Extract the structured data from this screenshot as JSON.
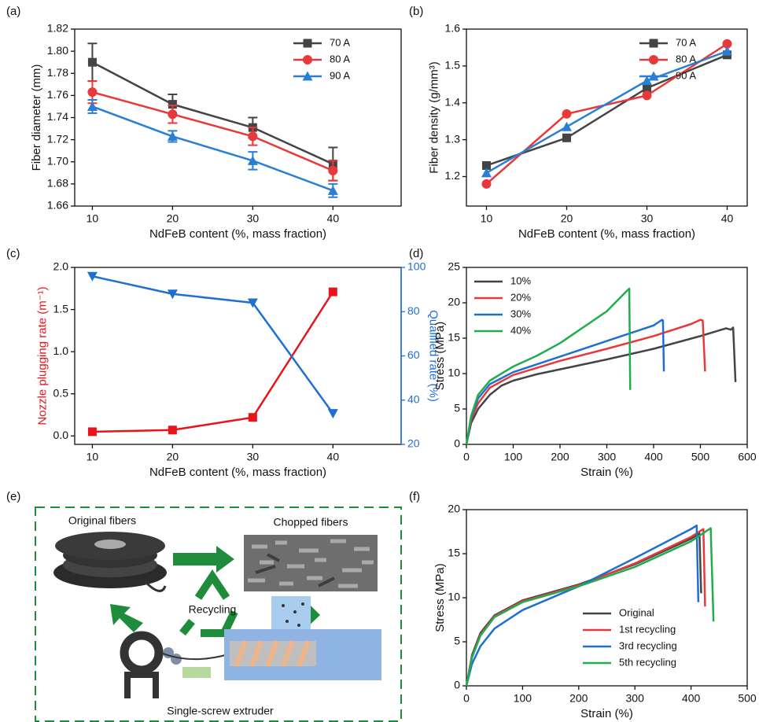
{
  "chart_data": [
    {
      "type": "line",
      "label": "(a)",
      "xlabel": "NdFeB content (%, mass fraction)",
      "ylabel": "Fiber diameter (mm)",
      "xlim": [
        7.8,
        48.5
      ],
      "xticks": [
        10,
        20,
        30,
        40
      ],
      "ylim": [
        1.66,
        1.82
      ],
      "yticks": [
        1.66,
        1.68,
        {
          "value": 1.7,
          "label": "1.70"
        },
        1.72,
        1.74,
        1.76,
        1.78,
        {
          "value": 1.8,
          "label": "1.80"
        },
        1.82
      ],
      "legend": "upper right",
      "x": [
        10,
        20,
        30,
        40
      ],
      "series": [
        {
          "name": "70 A",
          "color": "#444444",
          "marker": "square",
          "values": [
            1.79,
            1.752,
            1.731,
            1.698
          ],
          "errors": [
            0.017,
            0.009,
            0.009,
            0.015
          ]
        },
        {
          "name": "80 A",
          "color": "#e8393a",
          "marker": "circle",
          "values": [
            1.763,
            1.743,
            1.723,
            1.692
          ],
          "errors": [
            0.01,
            0.008,
            0.008,
            0.009
          ]
        },
        {
          "name": "90 A",
          "color": "#2a7fd4",
          "marker": "triangle",
          "values": [
            1.75,
            1.723,
            1.701,
            1.674
          ],
          "errors": [
            0.006,
            0.005,
            0.008,
            0.006
          ]
        }
      ]
    },
    {
      "type": "line",
      "label": "(b)",
      "xlabel": "NdFeB content (%, mass fraction)",
      "ylabel": "Fiber density (g/mm³)",
      "xlim": [
        7.5,
        42.5
      ],
      "xticks": [
        10,
        20,
        30,
        40
      ],
      "ylim": [
        1.12,
        1.6
      ],
      "yticks": [
        1.2,
        1.3,
        1.4,
        1.5,
        1.6
      ],
      "legend": "upper right",
      "x": [
        10,
        20,
        30,
        40
      ],
      "series": [
        {
          "name": "70 A",
          "color": "#444444",
          "marker": "square",
          "values": [
            1.23,
            1.305,
            1.44,
            1.53
          ]
        },
        {
          "name": "80 A",
          "color": "#e8393a",
          "marker": "circle",
          "values": [
            1.18,
            1.37,
            1.42,
            1.56
          ]
        },
        {
          "name": "90 A",
          "color": "#2a7fd4",
          "marker": "triangle",
          "values": [
            1.21,
            1.335,
            1.46,
            1.54
          ]
        }
      ]
    },
    {
      "type": "line",
      "label": "(c)",
      "xlabel": "NdFeB content (%, mass fraction)",
      "ylabel": "Nozzle plugging rate (m⁻¹)",
      "y2label": "Qualified rate (%)",
      "xlim": [
        7.8,
        48.5
      ],
      "xticks": [
        10,
        20,
        30,
        40
      ],
      "ylim": [
        -0.1,
        2.0
      ],
      "yticks": [
        {
          "value": 0,
          "label": "0.0"
        },
        0.5,
        {
          "value": 1,
          "label": "1.0"
        },
        1.5,
        {
          "value": 2,
          "label": "2.0"
        }
      ],
      "y2lim": [
        20,
        100
      ],
      "y2ticks": [
        20,
        40,
        60,
        80,
        100
      ],
      "x": [
        10,
        20,
        30,
        40
      ],
      "series": [
        {
          "color": "#e8141b",
          "marker": "square",
          "values": [
            0.05,
            0.07,
            0.22,
            1.71
          ]
        },
        {
          "color": "#1f6fd1",
          "marker": "invtriangle",
          "axis": "y2",
          "values": [
            96,
            88,
            84,
            34
          ]
        }
      ]
    },
    {
      "type": "line",
      "label": "(d)",
      "xlabel": "Strain (%)",
      "ylabel": "Stress (MPa)",
      "xlim": [
        0,
        600
      ],
      "xticks": [
        0,
        100,
        200,
        300,
        400,
        500,
        600
      ],
      "ylim": [
        0,
        25
      ],
      "yticks": [
        0,
        5,
        10,
        15,
        20,
        25
      ],
      "legend": "upper left",
      "series": [
        {
          "name": "10%",
          "color": "#444444",
          "x": [
            0,
            10,
            25,
            50,
            75,
            100,
            150,
            200,
            300,
            400,
            500,
            555,
            565,
            570,
            575
          ],
          "values": [
            0,
            3,
            5,
            7,
            8.3,
            9,
            9.9,
            10.6,
            12,
            13.5,
            15.3,
            16.4,
            16.2,
            16.5,
            8.8
          ]
        },
        {
          "name": "20%",
          "color": "#e8393a",
          "x": [
            0,
            10,
            25,
            50,
            100,
            150,
            200,
            300,
            400,
            480,
            500,
            505,
            510
          ],
          "values": [
            0,
            3.5,
            5.8,
            8,
            9.8,
            10.8,
            11.8,
            13.5,
            15.3,
            17,
            17.6,
            17.5,
            10.3
          ]
        },
        {
          "name": "30%",
          "color": "#1f6fd1",
          "x": [
            0,
            10,
            25,
            50,
            100,
            150,
            200,
            300,
            400,
            418,
            420,
            422
          ],
          "values": [
            0,
            3.8,
            6.5,
            8.5,
            10.2,
            11.3,
            12.4,
            14.6,
            16.8,
            17.6,
            17.5,
            10.3
          ]
        },
        {
          "name": "40%",
          "color": "#1fad4e",
          "x": [
            0,
            10,
            25,
            50,
            100,
            150,
            200,
            300,
            340,
            348,
            350
          ],
          "values": [
            0,
            4,
            7,
            9,
            11,
            12.5,
            14.3,
            18.8,
            21.5,
            22,
            7.7
          ]
        }
      ]
    },
    {
      "type": "line",
      "label": "(f)",
      "xlabel": "Strain (%)",
      "ylabel": "Stress (MPa)",
      "xlim": [
        0,
        500
      ],
      "xticks": [
        0,
        100,
        200,
        300,
        400,
        500
      ],
      "ylim": [
        0,
        20
      ],
      "yticks": [
        0,
        5,
        10,
        15,
        20
      ],
      "legend": "lower right",
      "series": [
        {
          "name": "Original",
          "color": "#444444",
          "x": [
            0,
            10,
            25,
            50,
            100,
            200,
            300,
            400,
            415,
            418
          ],
          "values": [
            0,
            3.5,
            6,
            8,
            9.7,
            11.5,
            13.8,
            16.7,
            17.3,
            10.5
          ]
        },
        {
          "name": "1st recycling",
          "color": "#e8393a",
          "x": [
            0,
            10,
            25,
            50,
            100,
            200,
            300,
            400,
            422,
            425
          ],
          "values": [
            0,
            3.3,
            5.8,
            7.9,
            9.6,
            11.4,
            13.9,
            16.9,
            17.8,
            9
          ]
        },
        {
          "name": "3rd recycling",
          "color": "#1f6fd1",
          "x": [
            0,
            10,
            25,
            50,
            100,
            200,
            300,
            400,
            410,
            413
          ],
          "values": [
            0,
            2.5,
            4.5,
            6.5,
            8.6,
            11.3,
            14.5,
            17.8,
            18.2,
            9.5
          ]
        },
        {
          "name": "5th recycling",
          "color": "#1fad4e",
          "x": [
            0,
            10,
            25,
            50,
            100,
            200,
            300,
            400,
            435,
            440
          ],
          "values": [
            0,
            3.2,
            5.7,
            7.8,
            9.5,
            11.3,
            13.5,
            16.4,
            17.9,
            7.3
          ]
        }
      ]
    }
  ],
  "diagram": {
    "label": "(e)",
    "original": "Original fibers",
    "chopped": "Chopped fibers",
    "recycling": "Recycling",
    "extruder": "Single-screw extruder"
  }
}
